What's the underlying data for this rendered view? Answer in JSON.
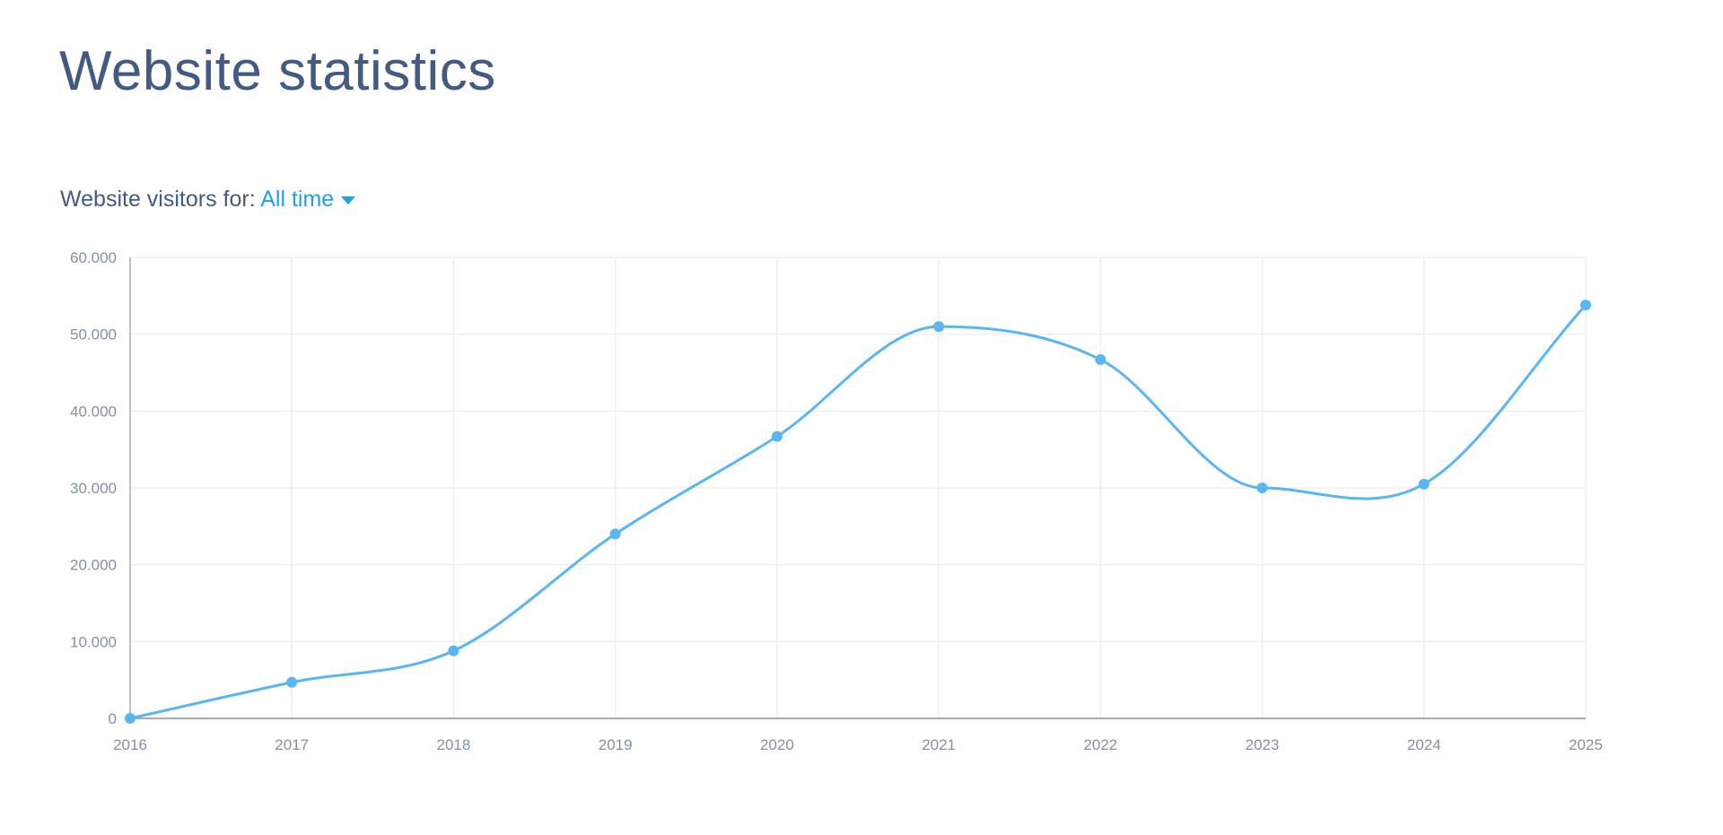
{
  "header": {
    "title": "Website statistics"
  },
  "filter": {
    "label": "Website visitors for:",
    "selected": "All time"
  },
  "colors": {
    "title": "#435b83",
    "accent": "#1ea1f1",
    "line": "#5ab6f2",
    "grid": "#eeeff2",
    "axis": "#a8aab0",
    "tick": "#8390ab"
  },
  "chart_data": {
    "type": "line",
    "title": "",
    "xlabel": "",
    "ylabel": "",
    "categories": [
      "2016",
      "2017",
      "2018",
      "2019",
      "2020",
      "2021",
      "2022",
      "2023",
      "2024",
      "2025"
    ],
    "series": [
      {
        "name": "Website visitors",
        "values": [
          0,
          4700,
          8800,
          24000,
          36700,
          51000,
          46700,
          30000,
          30500,
          53800
        ]
      }
    ],
    "ylim": [
      0,
      60000
    ],
    "yticks": [
      0,
      10000,
      20000,
      30000,
      40000,
      50000,
      60000
    ],
    "ytick_labels": [
      "0",
      "10.000",
      "20.000",
      "30.000",
      "40.000",
      "50.000",
      "60.000"
    ],
    "grid": true,
    "smooth": true
  }
}
